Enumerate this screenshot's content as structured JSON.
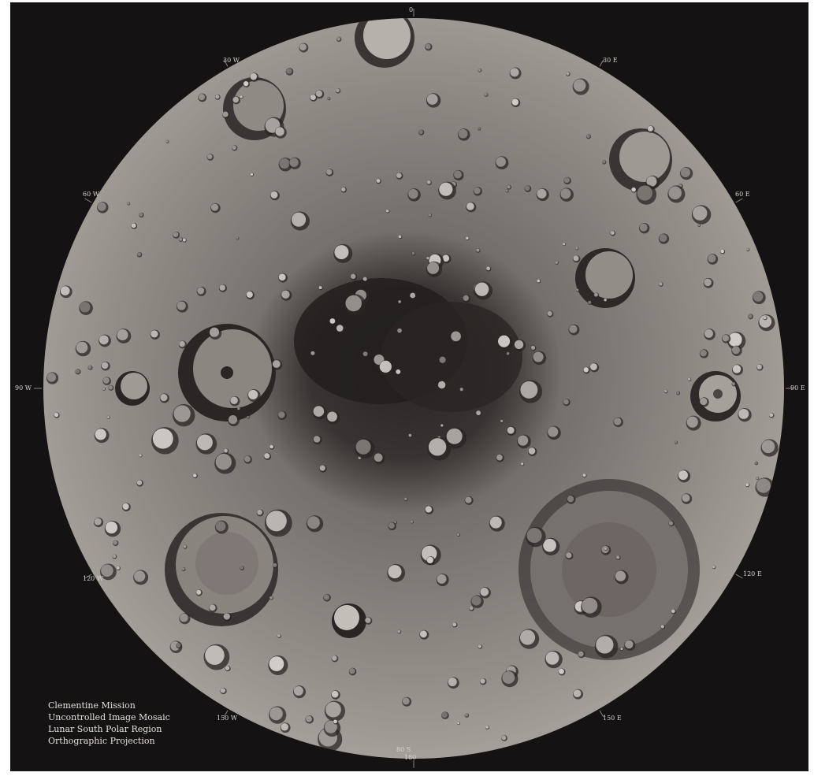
{
  "map": {
    "caption": [
      "Clementine Mission",
      "Uncontrolled Image Mosaic",
      "Lunar South Polar Region",
      "Orthographic Projection"
    ],
    "graticule_labels": {
      "top": "0",
      "upper_left": "30 W",
      "upper_right": "30 E",
      "right_upper": "60 E",
      "right": "90 E",
      "right_lower": "120 E",
      "bottom_right": "150 E",
      "bottom": "180",
      "bottom_left": "150 W",
      "left_lower": "120 W",
      "left": "90 W",
      "left_upper": "60 W",
      "bottom_lat": "80 S"
    },
    "colors": {
      "background": "#151213",
      "surface_mid": "#8a8480",
      "surface_light": "#c8c2bc",
      "shadow": "#1c1818"
    }
  }
}
